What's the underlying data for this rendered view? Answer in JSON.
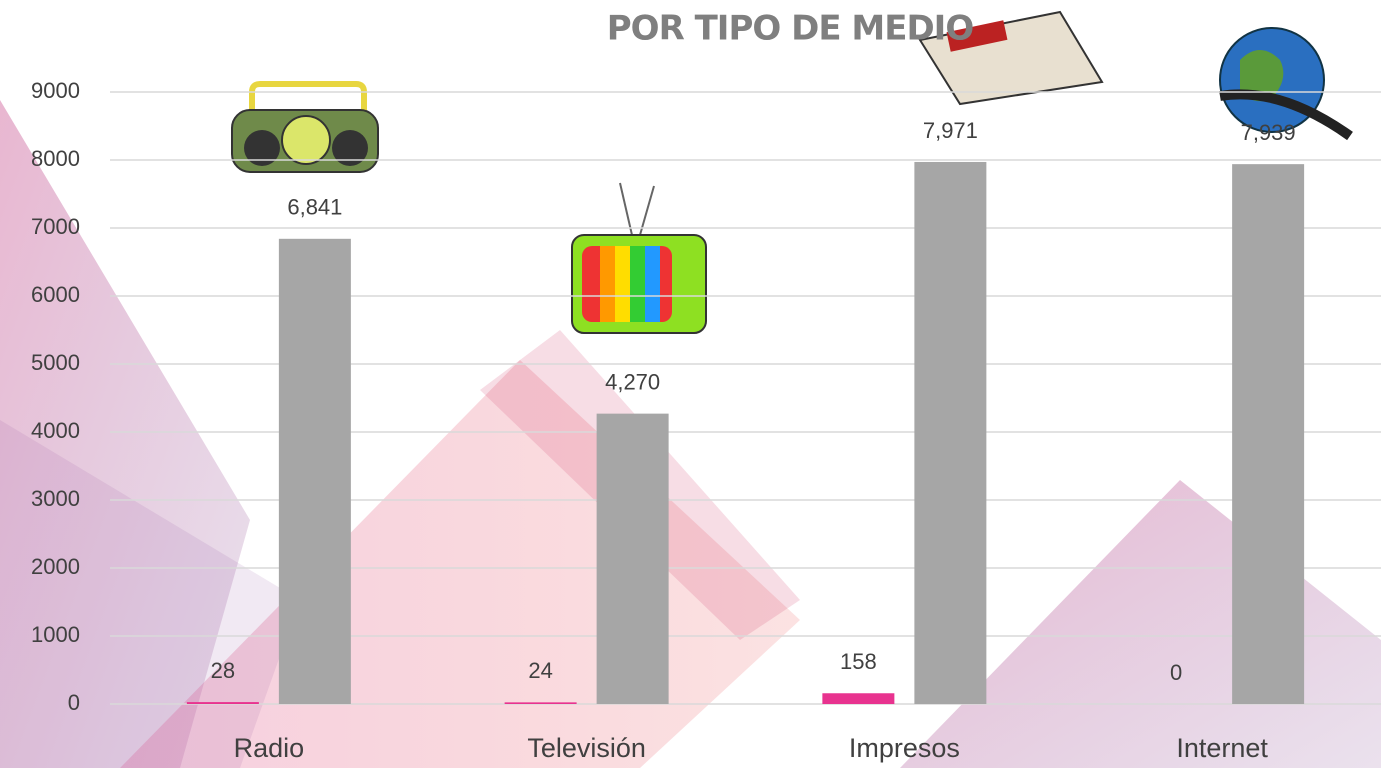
{
  "chart_data": {
    "type": "bar",
    "title": "POR TIPO DE MEDIO",
    "categories": [
      "Radio",
      "Televisión",
      "Impresos",
      "Internet"
    ],
    "series": [
      {
        "color": "#e8338f",
        "values": [
          28,
          24,
          158,
          0
        ]
      },
      {
        "color": "#a6a6a6",
        "values": [
          6841,
          4270,
          7971,
          7939
        ],
        "value_labels": [
          "6,841",
          "4,270",
          "7,971",
          "7,939"
        ]
      }
    ],
    "ylim": [
      0,
      9000
    ],
    "yticks": [
      0,
      1000,
      2000,
      3000,
      4000,
      5000,
      6000,
      7000,
      8000,
      9000
    ],
    "grid": true
  }
}
